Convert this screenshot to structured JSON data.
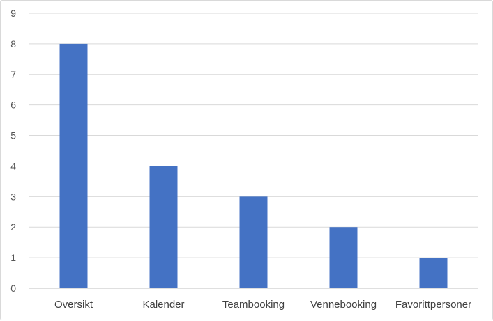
{
  "chart_data": {
    "type": "bar",
    "title": "",
    "xlabel": "",
    "ylabel": "",
    "categories": [
      "Oversikt",
      "Kalender",
      "Teambooking",
      "Vennebooking",
      "Favorittpersoner"
    ],
    "values": [
      8,
      4,
      3,
      2,
      1
    ],
    "ylim": [
      0,
      9
    ],
    "yticks": [
      "0",
      "1",
      "2",
      "3",
      "4",
      "5",
      "6",
      "7",
      "8",
      "9"
    ],
    "grid": true,
    "legend": "none",
    "colors": {
      "bar": "#4472c4",
      "grid": "#d9d9d9",
      "axis": "#bfbfbf"
    }
  }
}
